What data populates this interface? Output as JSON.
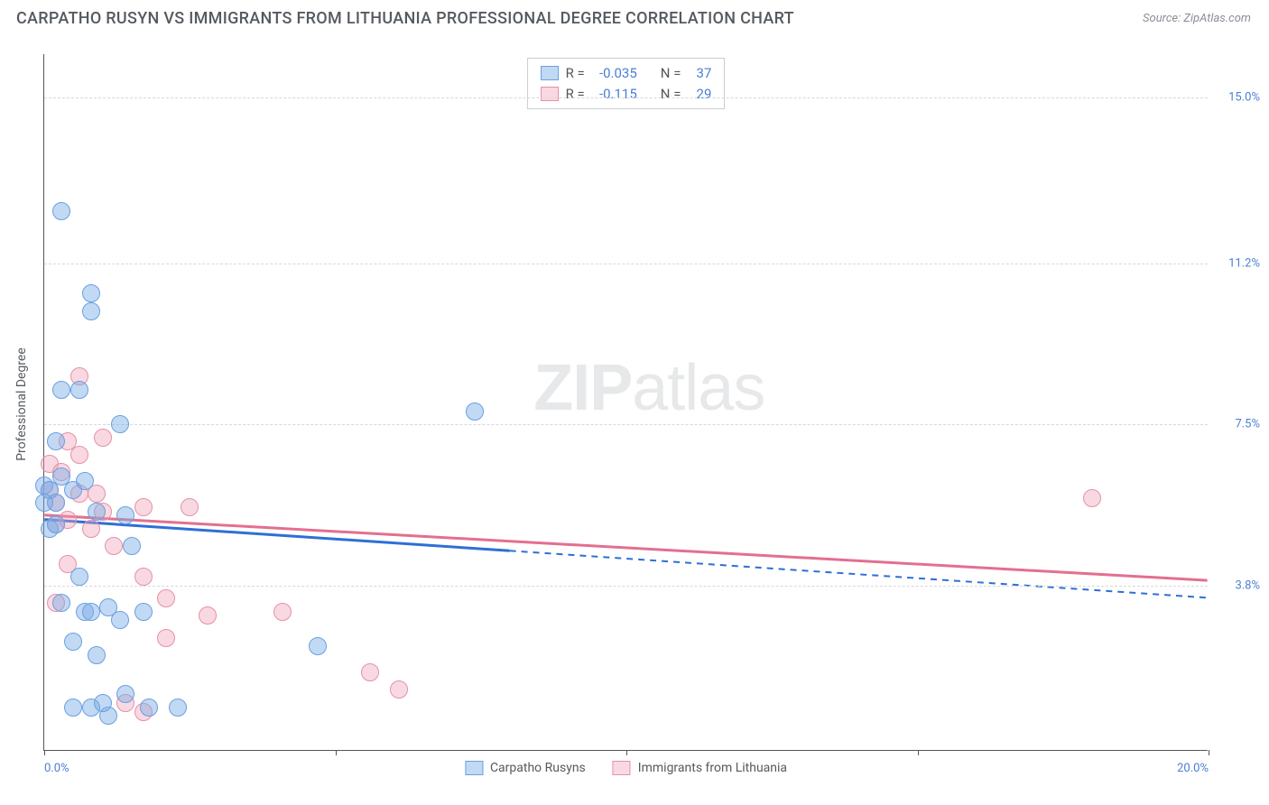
{
  "header": {
    "title": "CARPATHO RUSYN VS IMMIGRANTS FROM LITHUANIA PROFESSIONAL DEGREE CORRELATION CHART",
    "source": "Source: ZipAtlas.com"
  },
  "ylabel": "Professional Degree",
  "watermark": {
    "bold": "ZIP",
    "light": "atlas"
  },
  "colors": {
    "blue_fill": "rgba(120,170,230,0.45)",
    "blue_stroke": "#6aa0e0",
    "pink_fill": "rgba(240,160,180,0.40)",
    "pink_stroke": "#e690a8",
    "blue_line": "#2e6fd6",
    "pink_line": "#e36f90",
    "axis_text": "#4a7fd6",
    "grid": "#d6d8db"
  },
  "axes": {
    "x_min": 0.0,
    "x_max": 20.0,
    "y_min": 0.0,
    "y_max": 16.0,
    "x_ticks": [
      0.0,
      5.0,
      10.0,
      15.0,
      20.0
    ],
    "x_tick_labels": {
      "first": "0.0%",
      "last": "20.0%"
    },
    "y_gridlines": [
      3.8,
      7.5,
      11.2,
      15.0
    ],
    "y_tick_labels": [
      "3.8%",
      "7.5%",
      "11.2%",
      "15.0%"
    ]
  },
  "legend_stats": {
    "rows": [
      {
        "swatch_fill": "rgba(120,170,230,0.45)",
        "swatch_stroke": "#6aa0e0",
        "r_label": "R =",
        "r": "-0.035",
        "n_label": "N =",
        "n": "37"
      },
      {
        "swatch_fill": "rgba(240,160,180,0.40)",
        "swatch_stroke": "#e690a8",
        "r_label": "R =",
        "r": "-0.115",
        "n_label": "N =",
        "n": "29"
      }
    ]
  },
  "bottom_legend": [
    {
      "swatch_fill": "rgba(120,170,230,0.45)",
      "swatch_stroke": "#6aa0e0",
      "label": "Carpatho Rusyns"
    },
    {
      "swatch_fill": "rgba(240,160,180,0.40)",
      "swatch_stroke": "#e690a8",
      "label": "Immigrants from Lithuania"
    }
  ],
  "point_radius": 10,
  "series": {
    "blue": {
      "points": [
        [
          0.3,
          12.4
        ],
        [
          0.8,
          10.5
        ],
        [
          0.8,
          10.1
        ],
        [
          0.3,
          8.3
        ],
        [
          0.6,
          8.3
        ],
        [
          1.3,
          7.5
        ],
        [
          7.4,
          7.8
        ],
        [
          0.2,
          7.1
        ],
        [
          0.0,
          6.1
        ],
        [
          0.1,
          6.0
        ],
        [
          0.5,
          6.0
        ],
        [
          0.2,
          5.7
        ],
        [
          0.0,
          5.7
        ],
        [
          0.9,
          5.5
        ],
        [
          0.1,
          5.1
        ],
        [
          1.4,
          5.4
        ],
        [
          1.5,
          4.7
        ],
        [
          0.6,
          4.0
        ],
        [
          0.3,
          3.4
        ],
        [
          0.7,
          3.2
        ],
        [
          0.8,
          3.2
        ],
        [
          1.1,
          3.3
        ],
        [
          1.7,
          3.2
        ],
        [
          0.5,
          2.5
        ],
        [
          1.3,
          3.0
        ],
        [
          4.7,
          2.4
        ],
        [
          0.9,
          2.2
        ],
        [
          0.5,
          1.0
        ],
        [
          0.8,
          1.0
        ],
        [
          1.1,
          0.8
        ],
        [
          1.0,
          1.1
        ],
        [
          1.4,
          1.3
        ],
        [
          1.8,
          1.0
        ],
        [
          2.3,
          1.0
        ],
        [
          0.2,
          5.2
        ],
        [
          0.3,
          6.3
        ],
        [
          0.7,
          6.2
        ]
      ],
      "trend": {
        "x1": 0.0,
        "y1": 5.3,
        "x2": 20.0,
        "y2": 3.5,
        "solid_until_x": 8.0
      }
    },
    "pink": {
      "points": [
        [
          0.6,
          8.6
        ],
        [
          0.4,
          7.1
        ],
        [
          1.0,
          7.2
        ],
        [
          0.1,
          6.6
        ],
        [
          0.3,
          6.4
        ],
        [
          0.1,
          6.0
        ],
        [
          0.2,
          5.7
        ],
        [
          0.6,
          5.9
        ],
        [
          1.7,
          5.6
        ],
        [
          2.5,
          5.6
        ],
        [
          18.0,
          5.8
        ],
        [
          0.2,
          5.2
        ],
        [
          0.4,
          5.3
        ],
        [
          0.8,
          5.1
        ],
        [
          1.0,
          5.5
        ],
        [
          0.4,
          4.3
        ],
        [
          1.2,
          4.7
        ],
        [
          0.9,
          5.9
        ],
        [
          1.7,
          4.0
        ],
        [
          2.1,
          3.5
        ],
        [
          2.8,
          3.1
        ],
        [
          4.1,
          3.2
        ],
        [
          2.1,
          2.6
        ],
        [
          0.2,
          3.4
        ],
        [
          5.6,
          1.8
        ],
        [
          6.1,
          1.4
        ],
        [
          1.4,
          1.1
        ],
        [
          1.7,
          0.9
        ],
        [
          0.6,
          6.8
        ]
      ],
      "trend": {
        "x1": 0.0,
        "y1": 5.4,
        "x2": 20.0,
        "y2": 3.9,
        "solid_until_x": 20.0
      }
    }
  }
}
